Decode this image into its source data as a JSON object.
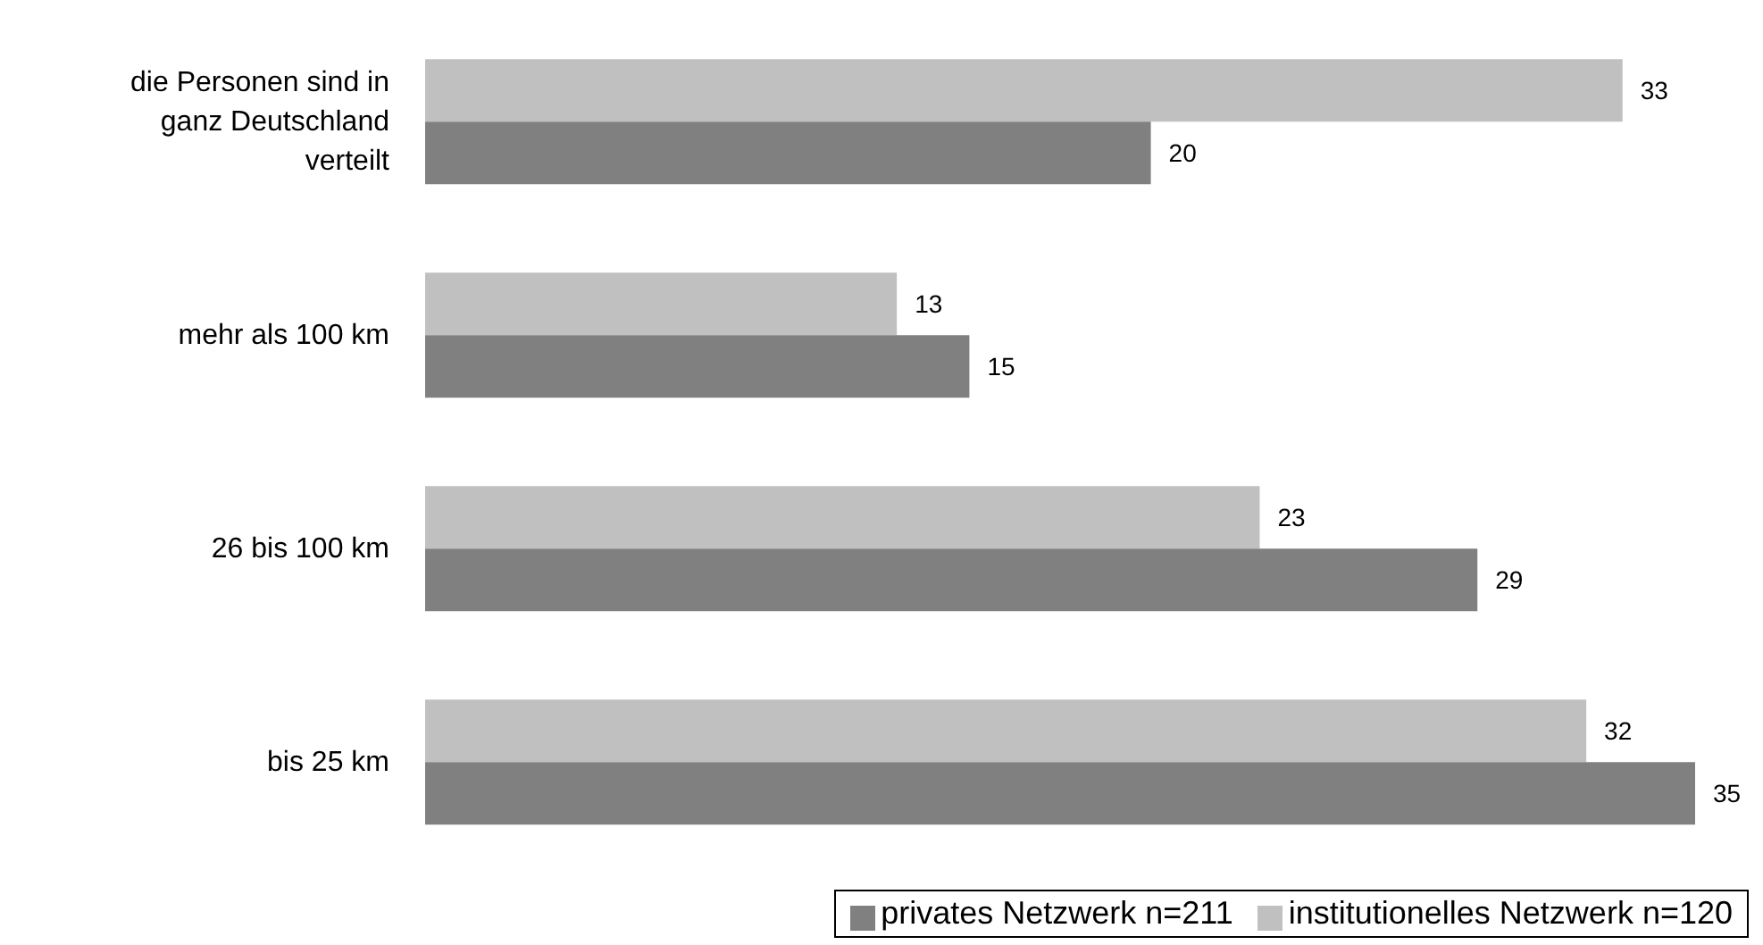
{
  "chart_data": {
    "type": "bar",
    "orientation": "horizontal",
    "categories": [
      "die Personen sind in ganz Deutschland verteilt",
      "mehr als 100 km",
      "26 bis 100 km",
      "bis 25 km"
    ],
    "series": [
      {
        "name": "privates Netzwerk n=211",
        "color": "#808080",
        "values": [
          20,
          15,
          29,
          35
        ]
      },
      {
        "name": "institutionelles Netzwerk n=120",
        "color": "#c0c0c0",
        "values": [
          33,
          13,
          23,
          32
        ]
      }
    ],
    "xlim": [
      0,
      35
    ],
    "data_labels": true,
    "grid": false,
    "legend": "bottom right",
    "tick_labels": "y"
  }
}
